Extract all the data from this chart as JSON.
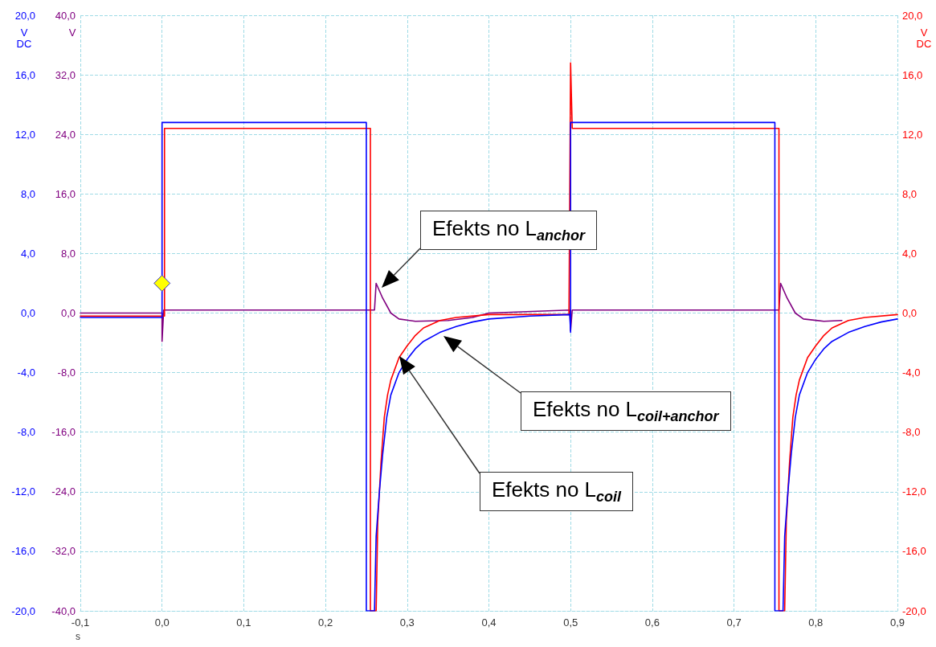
{
  "chart_data": {
    "type": "line",
    "xlabel": "s",
    "ylabel": "V\nDC",
    "y2label": "V",
    "y3label": "V\nDC",
    "xlim": [
      -0.1,
      0.9
    ],
    "xticks": [
      {
        "value": -0.1,
        "label": "-0,1"
      },
      {
        "value": 0,
        "label": "0,0"
      },
      {
        "value": 0.1,
        "label": "0,1"
      },
      {
        "value": 0.2,
        "label": "0,2"
      },
      {
        "value": 0.3,
        "label": "0,3"
      },
      {
        "value": 0.4,
        "label": "0,4"
      },
      {
        "value": 0.5,
        "label": "0,5"
      },
      {
        "value": 0.6,
        "label": "0,6"
      },
      {
        "value": 0.7,
        "label": "0,7"
      },
      {
        "value": 0.8,
        "label": "0,8"
      },
      {
        "value": 0.9,
        "label": "0,9"
      }
    ],
    "ylim": [
      -20,
      20
    ],
    "yticks": [
      {
        "value": -20,
        "label": "-20,0"
      },
      {
        "value": -16,
        "label": "-16,0"
      },
      {
        "value": -12,
        "label": "-12,0"
      },
      {
        "value": -8,
        "label": "-8,0"
      },
      {
        "value": -4,
        "label": "-4,0"
      },
      {
        "value": 0,
        "label": "0,0"
      },
      {
        "value": 4,
        "label": "4,0"
      },
      {
        "value": 8,
        "label": "8,0"
      },
      {
        "value": 12,
        "label": "12,0"
      },
      {
        "value": 16,
        "label": "16,0"
      },
      {
        "value": 20,
        "label": "20,0"
      }
    ],
    "y2lim": [
      -40,
      40
    ],
    "y2ticks": [
      {
        "value": -40,
        "label": "-40,0"
      },
      {
        "value": -32,
        "label": "-32,0"
      },
      {
        "value": -24,
        "label": "-24,0"
      },
      {
        "value": -16,
        "label": "-16,0"
      },
      {
        "value": -8,
        "label": "-8,0"
      },
      {
        "value": 0,
        "label": "0,0"
      },
      {
        "value": 8,
        "label": "8,0"
      },
      {
        "value": 16,
        "label": "16,0"
      },
      {
        "value": 24,
        "label": "24,0"
      },
      {
        "value": 32,
        "label": "32,0"
      },
      {
        "value": 40,
        "label": "40,0"
      }
    ],
    "y3lim": [
      -20,
      20
    ],
    "y3ticks": [
      {
        "value": -20,
        "label": "-20,0"
      },
      {
        "value": -16,
        "label": "-16,0"
      },
      {
        "value": -12,
        "label": "-12,0"
      },
      {
        "value": -8,
        "label": "-8,0"
      },
      {
        "value": -4,
        "label": "-4,0"
      },
      {
        "value": 0,
        "label": "0,0"
      },
      {
        "value": 4,
        "label": "4,0"
      },
      {
        "value": 8,
        "label": "8,0"
      },
      {
        "value": 12,
        "label": "12,0"
      },
      {
        "value": 16,
        "label": "16,0"
      },
      {
        "value": 20,
        "label": "20,0"
      }
    ],
    "grid": true,
    "marker": "none",
    "line_style": "solid",
    "series": [
      {
        "color": "#800080",
        "axis": "y2",
        "x": [
          -0.1,
          0,
          0,
          0.002,
          0.26,
          0.262,
          0.27,
          0.28,
          0.29,
          0.31,
          0.35,
          0.38,
          0.4,
          0.499,
          0.5,
          0.502,
          0.755,
          0.757,
          0.765,
          0.775,
          0.785,
          0.81,
          0.832
        ],
        "values": [
          0,
          0,
          -3.8,
          0.4,
          0.4,
          4,
          2,
          0,
          -0.8,
          -1.1,
          -1,
          -0.6,
          0,
          0.4,
          -2.4,
          0.4,
          0.4,
          4,
          2,
          0,
          -0.8,
          -1.1,
          -1
        ]
      },
      {
        "color": "#ff0000",
        "axis": "y3",
        "x": [
          -0.1,
          0.003,
          0.003,
          0.255,
          0.255,
          0.262,
          0.264,
          0.268,
          0.272,
          0.276,
          0.28,
          0.29,
          0.3,
          0.31,
          0.32,
          0.34,
          0.36,
          0.4,
          0.498,
          0.5,
          0.502,
          0.755,
          0.755,
          0.762,
          0.764,
          0.768,
          0.772,
          0.776,
          0.78,
          0.79,
          0.8,
          0.81,
          0.82,
          0.84,
          0.86,
          0.9
        ],
        "values": [
          -0.2,
          -0.2,
          12.4,
          12.4,
          -20,
          -20,
          -14,
          -10,
          -7,
          -5.5,
          -4.5,
          -3,
          -2.2,
          -1.5,
          -1,
          -0.5,
          -0.3,
          -0.1,
          -0.1,
          16.8,
          12.4,
          12.4,
          -20,
          -20,
          -14,
          -10,
          -7,
          -5.5,
          -4.5,
          -3,
          -2.2,
          -1.5,
          -1,
          -0.5,
          -0.3,
          -0.1
        ]
      },
      {
        "color": "#0000ff",
        "x": [
          -0.1,
          0,
          0,
          0.25,
          0.25,
          0.26,
          0.262,
          0.266,
          0.27,
          0.275,
          0.28,
          0.29,
          0.3,
          0.31,
          0.32,
          0.34,
          0.36,
          0.38,
          0.4,
          0.45,
          0.499,
          0.5,
          0.5,
          0.75,
          0.75,
          0.76,
          0.762,
          0.766,
          0.77,
          0.775,
          0.78,
          0.79,
          0.8,
          0.81,
          0.82,
          0.84,
          0.86,
          0.88,
          0.9
        ],
        "values": [
          -0.3,
          -0.3,
          12.8,
          12.8,
          -20,
          -20,
          -15,
          -12,
          -9.5,
          -7,
          -5.5,
          -4,
          -3.1,
          -2.4,
          -1.9,
          -1.3,
          -0.9,
          -0.6,
          -0.4,
          -0.2,
          -0.1,
          -1.3,
          12.8,
          12.8,
          -20,
          -20,
          -15,
          -12,
          -9.5,
          -7,
          -5.5,
          -4,
          -3.1,
          -2.4,
          -1.9,
          -1.3,
          -0.9,
          -0.6,
          -0.4
        ]
      }
    ],
    "annotations": [
      "Efekts no L$_{anchor}$",
      "Efekts no L$_{coil+anchor}$",
      "Efekts no L$_{coil}$"
    ]
  }
}
